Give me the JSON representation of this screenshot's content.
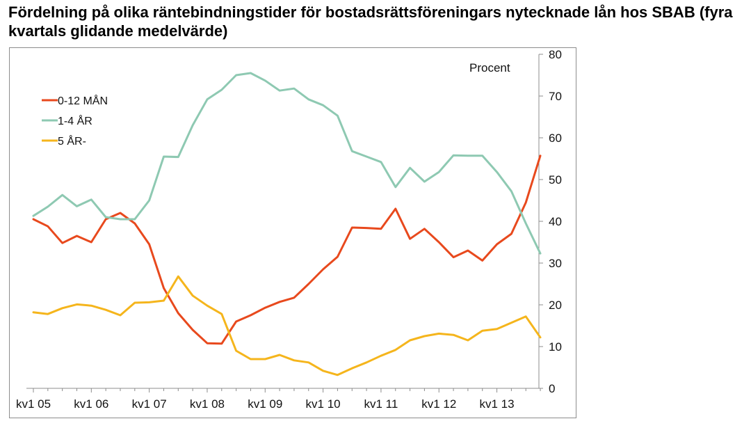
{
  "chart_data": {
    "type": "line",
    "title": "Fördelning på olika räntebindningstider för bostadsrättsföreningars nytecknade lån hos SBAB (fyra kvartals glidande medelvärde)",
    "unit_label": "Procent",
    "x_tick_labels": [
      "kv1 05",
      "kv1 06",
      "kv1 07",
      "kv1 08",
      "kv1 09",
      "kv1 10",
      "kv1 11",
      "kv1 12",
      "kv1 13"
    ],
    "ylim": [
      0,
      80
    ],
    "y_ticks": [
      0,
      10,
      20,
      30,
      40,
      50,
      60,
      70,
      80
    ],
    "y_axis_position": "right",
    "grid": false,
    "legend_position": "top-left",
    "x": [
      "kv1 05",
      "kv2 05",
      "kv3 05",
      "kv4 05",
      "kv1 06",
      "kv2 06",
      "kv3 06",
      "kv4 06",
      "kv1 07",
      "kv2 07",
      "kv3 07",
      "kv4 07",
      "kv1 08",
      "kv2 08",
      "kv3 08",
      "kv4 08",
      "kv1 09",
      "kv2 09",
      "kv3 09",
      "kv4 09",
      "kv1 10",
      "kv2 10",
      "kv3 10",
      "kv4 10",
      "kv1 11",
      "kv2 11",
      "kv3 11",
      "kv4 11",
      "kv1 12",
      "kv2 12",
      "kv3 12",
      "kv4 12",
      "kv1 13",
      "kv2 13",
      "kv3 13",
      "kv4 13"
    ],
    "series": [
      {
        "name": "0-12 MÅN",
        "color": "#e8491d",
        "values": [
          40.5,
          38.8,
          34.8,
          36.5,
          35.0,
          40.5,
          42.0,
          39.5,
          34.5,
          24.0,
          18.0,
          14.0,
          10.8,
          10.7,
          16.0,
          17.5,
          19.3,
          20.7,
          21.7,
          25.0,
          28.5,
          31.5,
          38.5,
          38.4,
          38.2,
          43.0,
          35.8,
          38.2,
          35.0,
          31.4,
          33.0,
          30.6,
          34.5,
          37.0,
          44.5,
          55.7
        ]
      },
      {
        "name": "1-4 ÅR",
        "color": "#8ec9b2",
        "values": [
          41.3,
          43.5,
          46.3,
          43.6,
          45.2,
          41.0,
          40.5,
          40.5,
          45.0,
          55.5,
          55.4,
          63.0,
          69.2,
          71.5,
          75.0,
          75.5,
          73.7,
          71.3,
          71.8,
          69.2,
          67.8,
          65.3,
          56.8,
          55.5,
          54.2,
          48.2,
          52.8,
          49.5,
          51.8,
          55.8,
          55.7,
          55.7,
          51.8,
          47.2,
          39.5,
          32.3
        ]
      },
      {
        "name": "5 ÅR-",
        "color": "#f5b51c",
        "values": [
          18.2,
          17.8,
          19.2,
          20.1,
          19.8,
          18.8,
          17.5,
          20.5,
          20.6,
          21.0,
          26.8,
          22.2,
          19.8,
          17.8,
          9.0,
          7.0,
          7.0,
          8.0,
          6.7,
          6.2,
          4.2,
          3.2,
          4.8,
          6.2,
          7.8,
          9.2,
          11.5,
          12.5,
          13.1,
          12.8,
          11.5,
          13.8,
          14.2,
          15.7,
          17.2,
          12.2
        ]
      }
    ]
  }
}
